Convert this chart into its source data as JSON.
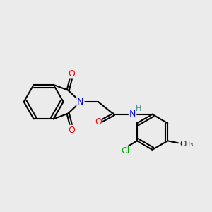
{
  "background_color": "#ebebeb",
  "bond_color": "#000000",
  "bond_width": 1.5,
  "atom_colors": {
    "N": "#0000ff",
    "O": "#ff0000",
    "Cl": "#00aa00",
    "H": "#448888",
    "C": "#000000"
  },
  "font_size_atoms": 9,
  "bg": "#ebebeb"
}
